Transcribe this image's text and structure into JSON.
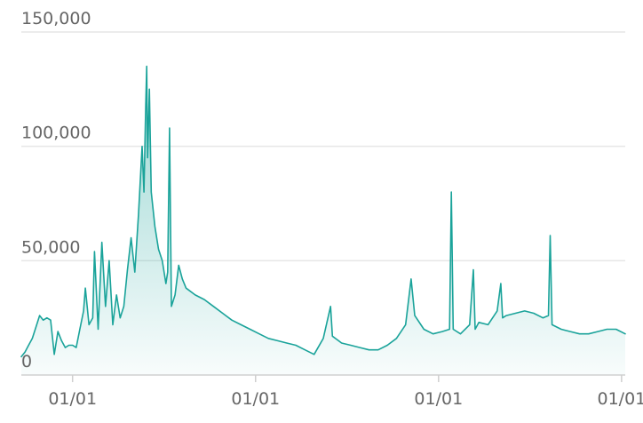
{
  "chart_data": {
    "type": "area",
    "title": "",
    "xlabel": "",
    "ylabel": "",
    "ylim": [
      0,
      150000
    ],
    "y_ticks": [
      {
        "value": 0,
        "label": "0"
      },
      {
        "value": 50000,
        "label": "50,000"
      },
      {
        "value": 100000,
        "label": "100,000"
      },
      {
        "value": 150000,
        "label": "150,000"
      }
    ],
    "x_ticks": [
      {
        "value": 2.18,
        "label": "01/01"
      },
      {
        "value": 3.18,
        "label": "01/01"
      },
      {
        "value": 4.18,
        "label": "01/01"
      },
      {
        "value": 5.18,
        "label": "01/01"
      }
    ],
    "xlim": [
      1.9,
      5.2
    ],
    "grid": true,
    "legend": "none",
    "line_color": "#1aa39a",
    "fill_color": "#1aa39a",
    "series": [
      {
        "values": [
          [
            1.9,
            8000
          ],
          [
            1.92,
            10000
          ],
          [
            1.94,
            13000
          ],
          [
            1.96,
            16000
          ],
          [
            1.98,
            21000
          ],
          [
            2.0,
            26000
          ],
          [
            2.02,
            24000
          ],
          [
            2.04,
            25000
          ],
          [
            2.06,
            24000
          ],
          [
            2.08,
            9000
          ],
          [
            2.1,
            19000
          ],
          [
            2.12,
            15000
          ],
          [
            2.14,
            12000
          ],
          [
            2.16,
            13000
          ],
          [
            2.18,
            13000
          ],
          [
            2.2,
            12000
          ],
          [
            2.22,
            20000
          ],
          [
            2.24,
            28000
          ],
          [
            2.25,
            38000
          ],
          [
            2.27,
            22000
          ],
          [
            2.29,
            25000
          ],
          [
            2.3,
            54000
          ],
          [
            2.32,
            20000
          ],
          [
            2.34,
            58000
          ],
          [
            2.36,
            30000
          ],
          [
            2.38,
            50000
          ],
          [
            2.4,
            22000
          ],
          [
            2.42,
            35000
          ],
          [
            2.44,
            25000
          ],
          [
            2.46,
            30000
          ],
          [
            2.48,
            46000
          ],
          [
            2.5,
            60000
          ],
          [
            2.52,
            45000
          ],
          [
            2.54,
            70000
          ],
          [
            2.56,
            100000
          ],
          [
            2.57,
            80000
          ],
          [
            2.58,
            118000
          ],
          [
            2.585,
            135000
          ],
          [
            2.59,
            95000
          ],
          [
            2.6,
            125000
          ],
          [
            2.61,
            80000
          ],
          [
            2.63,
            65000
          ],
          [
            2.65,
            55000
          ],
          [
            2.67,
            50000
          ],
          [
            2.69,
            40000
          ],
          [
            2.7,
            45000
          ],
          [
            2.71,
            108000
          ],
          [
            2.72,
            30000
          ],
          [
            2.74,
            35000
          ],
          [
            2.76,
            48000
          ],
          [
            2.78,
            42000
          ],
          [
            2.8,
            38000
          ],
          [
            2.85,
            35000
          ],
          [
            2.9,
            33000
          ],
          [
            2.95,
            30000
          ],
          [
            3.0,
            27000
          ],
          [
            3.05,
            24000
          ],
          [
            3.1,
            22000
          ],
          [
            3.15,
            20000
          ],
          [
            3.2,
            18000
          ],
          [
            3.25,
            16000
          ],
          [
            3.3,
            15000
          ],
          [
            3.35,
            14000
          ],
          [
            3.4,
            13000
          ],
          [
            3.45,
            11000
          ],
          [
            3.5,
            9000
          ],
          [
            3.55,
            16000
          ],
          [
            3.59,
            30000
          ],
          [
            3.6,
            17000
          ],
          [
            3.65,
            14000
          ],
          [
            3.7,
            13000
          ],
          [
            3.75,
            12000
          ],
          [
            3.8,
            11000
          ],
          [
            3.85,
            11000
          ],
          [
            3.9,
            13000
          ],
          [
            3.95,
            16000
          ],
          [
            4.0,
            22000
          ],
          [
            4.03,
            42000
          ],
          [
            4.05,
            26000
          ],
          [
            4.1,
            20000
          ],
          [
            4.15,
            18000
          ],
          [
            4.2,
            19000
          ],
          [
            4.24,
            20000
          ],
          [
            4.25,
            80000
          ],
          [
            4.26,
            20000
          ],
          [
            4.3,
            18000
          ],
          [
            4.35,
            22000
          ],
          [
            4.37,
            46000
          ],
          [
            4.38,
            20000
          ],
          [
            4.4,
            23000
          ],
          [
            4.45,
            22000
          ],
          [
            4.5,
            28000
          ],
          [
            4.52,
            40000
          ],
          [
            4.53,
            25000
          ],
          [
            4.55,
            26000
          ],
          [
            4.6,
            27000
          ],
          [
            4.65,
            28000
          ],
          [
            4.7,
            27000
          ],
          [
            4.75,
            25000
          ],
          [
            4.78,
            26000
          ],
          [
            4.79,
            61000
          ],
          [
            4.8,
            22000
          ],
          [
            4.85,
            20000
          ],
          [
            4.9,
            19000
          ],
          [
            4.95,
            18000
          ],
          [
            5.0,
            18000
          ],
          [
            5.05,
            19000
          ],
          [
            5.1,
            20000
          ],
          [
            5.15,
            20000
          ],
          [
            5.2,
            18000
          ]
        ]
      }
    ]
  }
}
